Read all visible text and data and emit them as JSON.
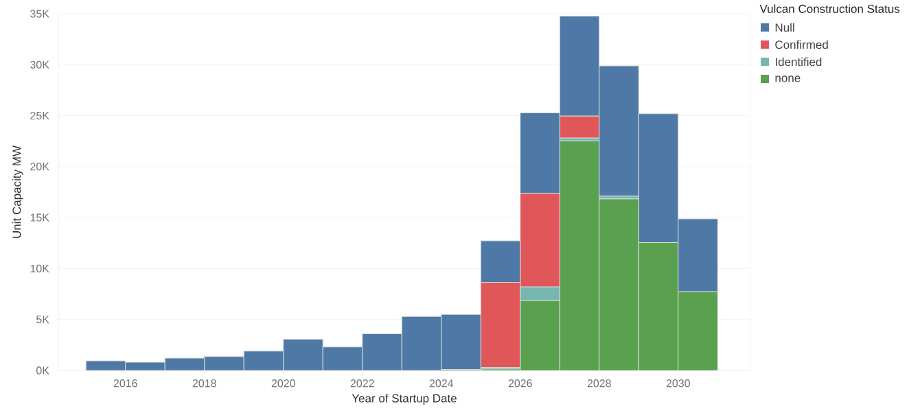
{
  "chart_data": {
    "type": "bar",
    "xlabel": "Year of Startup Date",
    "ylabel": "Unit Capacity MW",
    "legend_title": "Vulcan Construction Status",
    "x": [
      2015.5,
      2016.5,
      2017.5,
      2018.5,
      2019.5,
      2020.5,
      2021.5,
      2022.5,
      2023.5,
      2024.5,
      2025.5,
      2026.5,
      2027.5,
      2028.5,
      2029.5,
      2030.5
    ],
    "stacked": true,
    "series": [
      {
        "name": "none",
        "color": "#59a14f",
        "values": [
          null,
          null,
          null,
          null,
          null,
          null,
          null,
          null,
          null,
          100,
          150,
          6860,
          22540,
          16840,
          12560,
          7740
        ]
      },
      {
        "name": "Identified",
        "color": "#76b7b2",
        "values": [
          null,
          null,
          null,
          null,
          null,
          null,
          null,
          null,
          null,
          null,
          150,
          1360,
          270,
          270,
          null,
          null
        ]
      },
      {
        "name": "Confirmed",
        "color": "#e15759",
        "values": [
          null,
          null,
          null,
          null,
          null,
          null,
          null,
          null,
          null,
          null,
          8350,
          9170,
          2170,
          null,
          null,
          null
        ]
      },
      {
        "name": "Null",
        "color": "#4e79a7",
        "values": [
          950,
          800,
          1220,
          1360,
          1900,
          3060,
          2310,
          3600,
          5300,
          5400,
          4070,
          7880,
          9780,
          12770,
          12630,
          7130
        ]
      }
    ],
    "xlim": [
      2014.3,
      2031.83
    ],
    "ylim": [
      0,
      35000
    ],
    "xticks": [
      2016,
      2018,
      2020,
      2022,
      2024,
      2026,
      2028,
      2030
    ],
    "yticks": [
      {
        "value": 0,
        "label": "0K"
      },
      {
        "value": 5000,
        "label": "5K"
      },
      {
        "value": 10000,
        "label": "10K"
      },
      {
        "value": 15000,
        "label": "15K"
      },
      {
        "value": 20000,
        "label": "20K"
      },
      {
        "value": 25000,
        "label": "25K"
      },
      {
        "value": 30000,
        "label": "30K"
      },
      {
        "value": 35000,
        "label": "35K"
      }
    ],
    "grid": "y",
    "legend": "top right"
  }
}
